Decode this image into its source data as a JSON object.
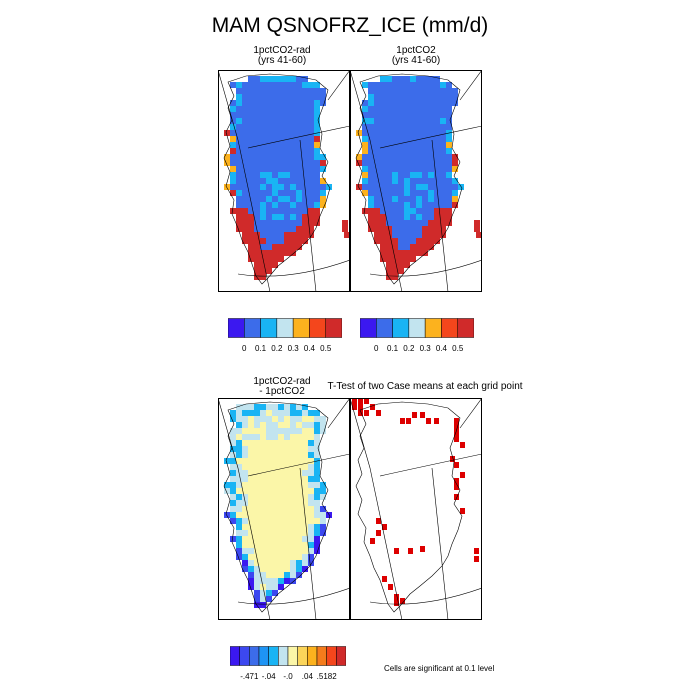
{
  "figure": {
    "title": "MAM QSNOFRZ_ICE (mm/d)"
  },
  "panels": [
    {
      "id": "p1",
      "title_line1": "1pctCO2-rad",
      "title_line2": "(yrs 41-60)"
    },
    {
      "id": "p2",
      "title_line1": "1pctCO2",
      "title_line2": "(yrs 41-60)"
    },
    {
      "id": "p3",
      "title_line1": "1pctCO2-rad",
      "title_line2": "- 1pctCO2"
    },
    {
      "id": "p4",
      "title_line1": "T-Test of two Case means at each grid point",
      "title_line2": ""
    }
  ],
  "colorbar_top": {
    "colors": [
      "#3b18f0",
      "#3c6cea",
      "#19b4f4",
      "#c2e4ef",
      "#fcb21e",
      "#f4461c",
      "#d02a2a"
    ],
    "labels": [
      "0",
      "0.1",
      "0.2",
      "0.3",
      "0.4",
      "0.5"
    ]
  },
  "colorbar_diff": {
    "colors": [
      "#3b18f0",
      "#3c48f0",
      "#3c6cea",
      "#1e94f4",
      "#19b4f4",
      "#c2e4ef",
      "#fbf6a8",
      "#fbd55a",
      "#fcb21e",
      "#f47c1c",
      "#f4461c",
      "#d02a2a"
    ],
    "labels": [
      "-.471",
      "-.04",
      "-.0",
      ".04",
      ".5182"
    ]
  },
  "significance_note": "Cells are significant at 0.1 level",
  "colors": {
    "ice_low": "#3c6cea",
    "ice_mid": "#19b4f4",
    "ice_pale": "#c2e4ef",
    "ice_high": "#d02a2a",
    "ice_orange": "#fcb21e",
    "diff_core": "#fbf6a8",
    "significant": "#dd0000"
  },
  "chart_data": [
    {
      "type": "heatmap",
      "title": "1pctCO2-rad (yrs 41-60)",
      "description_values": "ice sheet interior about 0-0.1 mm/d; margins up to 0.5+ mm/d",
      "levels": [
        0,
        0.1,
        0.2,
        0.3,
        0.4,
        0.5
      ]
    },
    {
      "type": "heatmap",
      "title": "1pctCO2 (yrs 41-60)",
      "levels": [
        0,
        0.1,
        0.2,
        0.3,
        0.4,
        0.5
      ]
    },
    {
      "type": "heatmap",
      "title": "1pctCO2-rad - 1pctCO2",
      "range": [
        -0.471,
        0.5182
      ],
      "levels": [
        -0.471,
        -0.04,
        -0.0,
        0.04,
        0.5182
      ]
    },
    {
      "type": "heatmap",
      "title": "T-Test of two Case means at each grid point",
      "note": "Cells are significant at 0.1 level"
    }
  ]
}
